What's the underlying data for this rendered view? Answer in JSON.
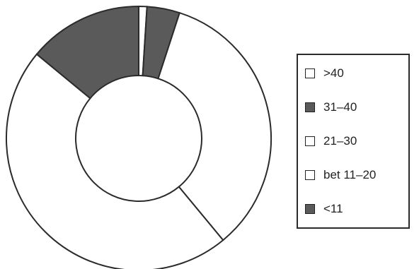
{
  "chart_data": {
    "type": "pie",
    "donut": true,
    "title": "",
    "categories": [
      ">40",
      "31–40",
      "21–30",
      "bet 11–20",
      "<11"
    ],
    "values": [
      1,
      4,
      34,
      47,
      14
    ],
    "unit": "percent",
    "series": [
      {
        "values": [
          1,
          4,
          34,
          47,
          14
        ]
      }
    ],
    "slice_order": "clockwise from top",
    "legend_placement": "right",
    "colors": {
      ">40": "#ffffff",
      "31–40": "#5a5a5a",
      "21–30": "#ffffff",
      "bet 11–20": "#ffffff",
      "<11": "#5a5a5a",
      "outline": "#2b2b2b"
    }
  },
  "legend": {
    "items": [
      {
        "label": ">40",
        "color": "#ffffff"
      },
      {
        "label": "31–40",
        "color": "#5a5a5a"
      },
      {
        "label": "21–30",
        "color": "#ffffff"
      },
      {
        "label": "bet 11–20",
        "color": "#ffffff"
      },
      {
        "label": "<11",
        "color": "#5a5a5a"
      }
    ]
  }
}
